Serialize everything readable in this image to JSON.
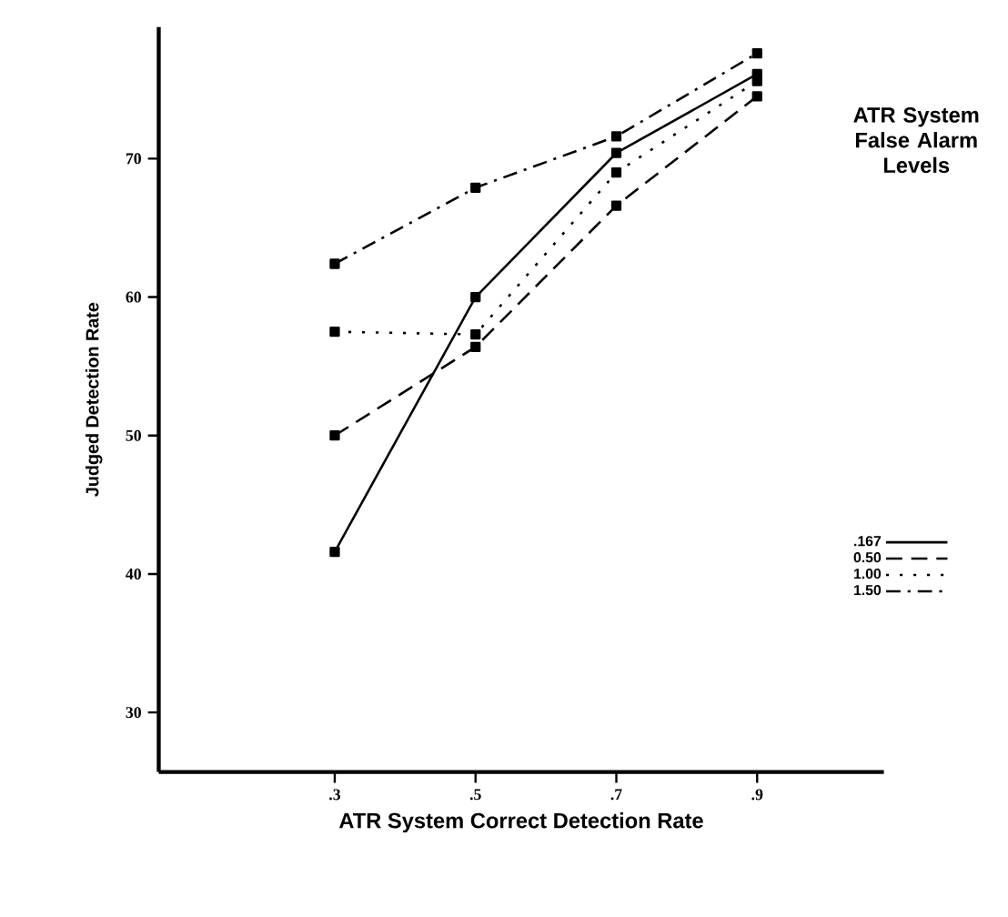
{
  "chart_data": {
    "type": "line",
    "xlabel": "ATR System Correct Detection Rate",
    "ylabel": "Judged Detection Rate",
    "legend_title": "ATR System False Alarm Levels",
    "x": [
      0.3,
      0.5,
      0.7,
      0.9
    ],
    "series": [
      {
        "name": ".167",
        "color": "#000000",
        "line_style": "solid",
        "values": [
          41.6,
          60,
          70.4,
          76.1
        ]
      },
      {
        "name": "0.50",
        "color": "#000000",
        "line_style": "dashed",
        "values": [
          50,
          56.4,
          66.6,
          74.5
        ]
      },
      {
        "name": "1.00",
        "color": "#000000",
        "line_style": "dotted",
        "values": [
          57.5,
          57.3,
          69,
          75.6
        ]
      },
      {
        "name": "1.50",
        "color": "#000000",
        "line_style": "dashdot",
        "values": [
          62.4,
          67.9,
          71.6,
          77.6
        ]
      }
    ],
    "xlim": [
      0.05,
      1.08
    ],
    "ylim": [
      25.7,
      79.5
    ],
    "xticks": [
      {
        "value": 0.3,
        "label": ".3"
      },
      {
        "value": 0.5,
        "label": ".5"
      },
      {
        "value": 0.7,
        "label": ".7"
      },
      {
        "value": 0.9,
        "label": ".9"
      }
    ],
    "yticks": [
      30,
      40,
      50,
      60,
      70
    ],
    "marker": "square",
    "legend": "right",
    "grid": false
  }
}
